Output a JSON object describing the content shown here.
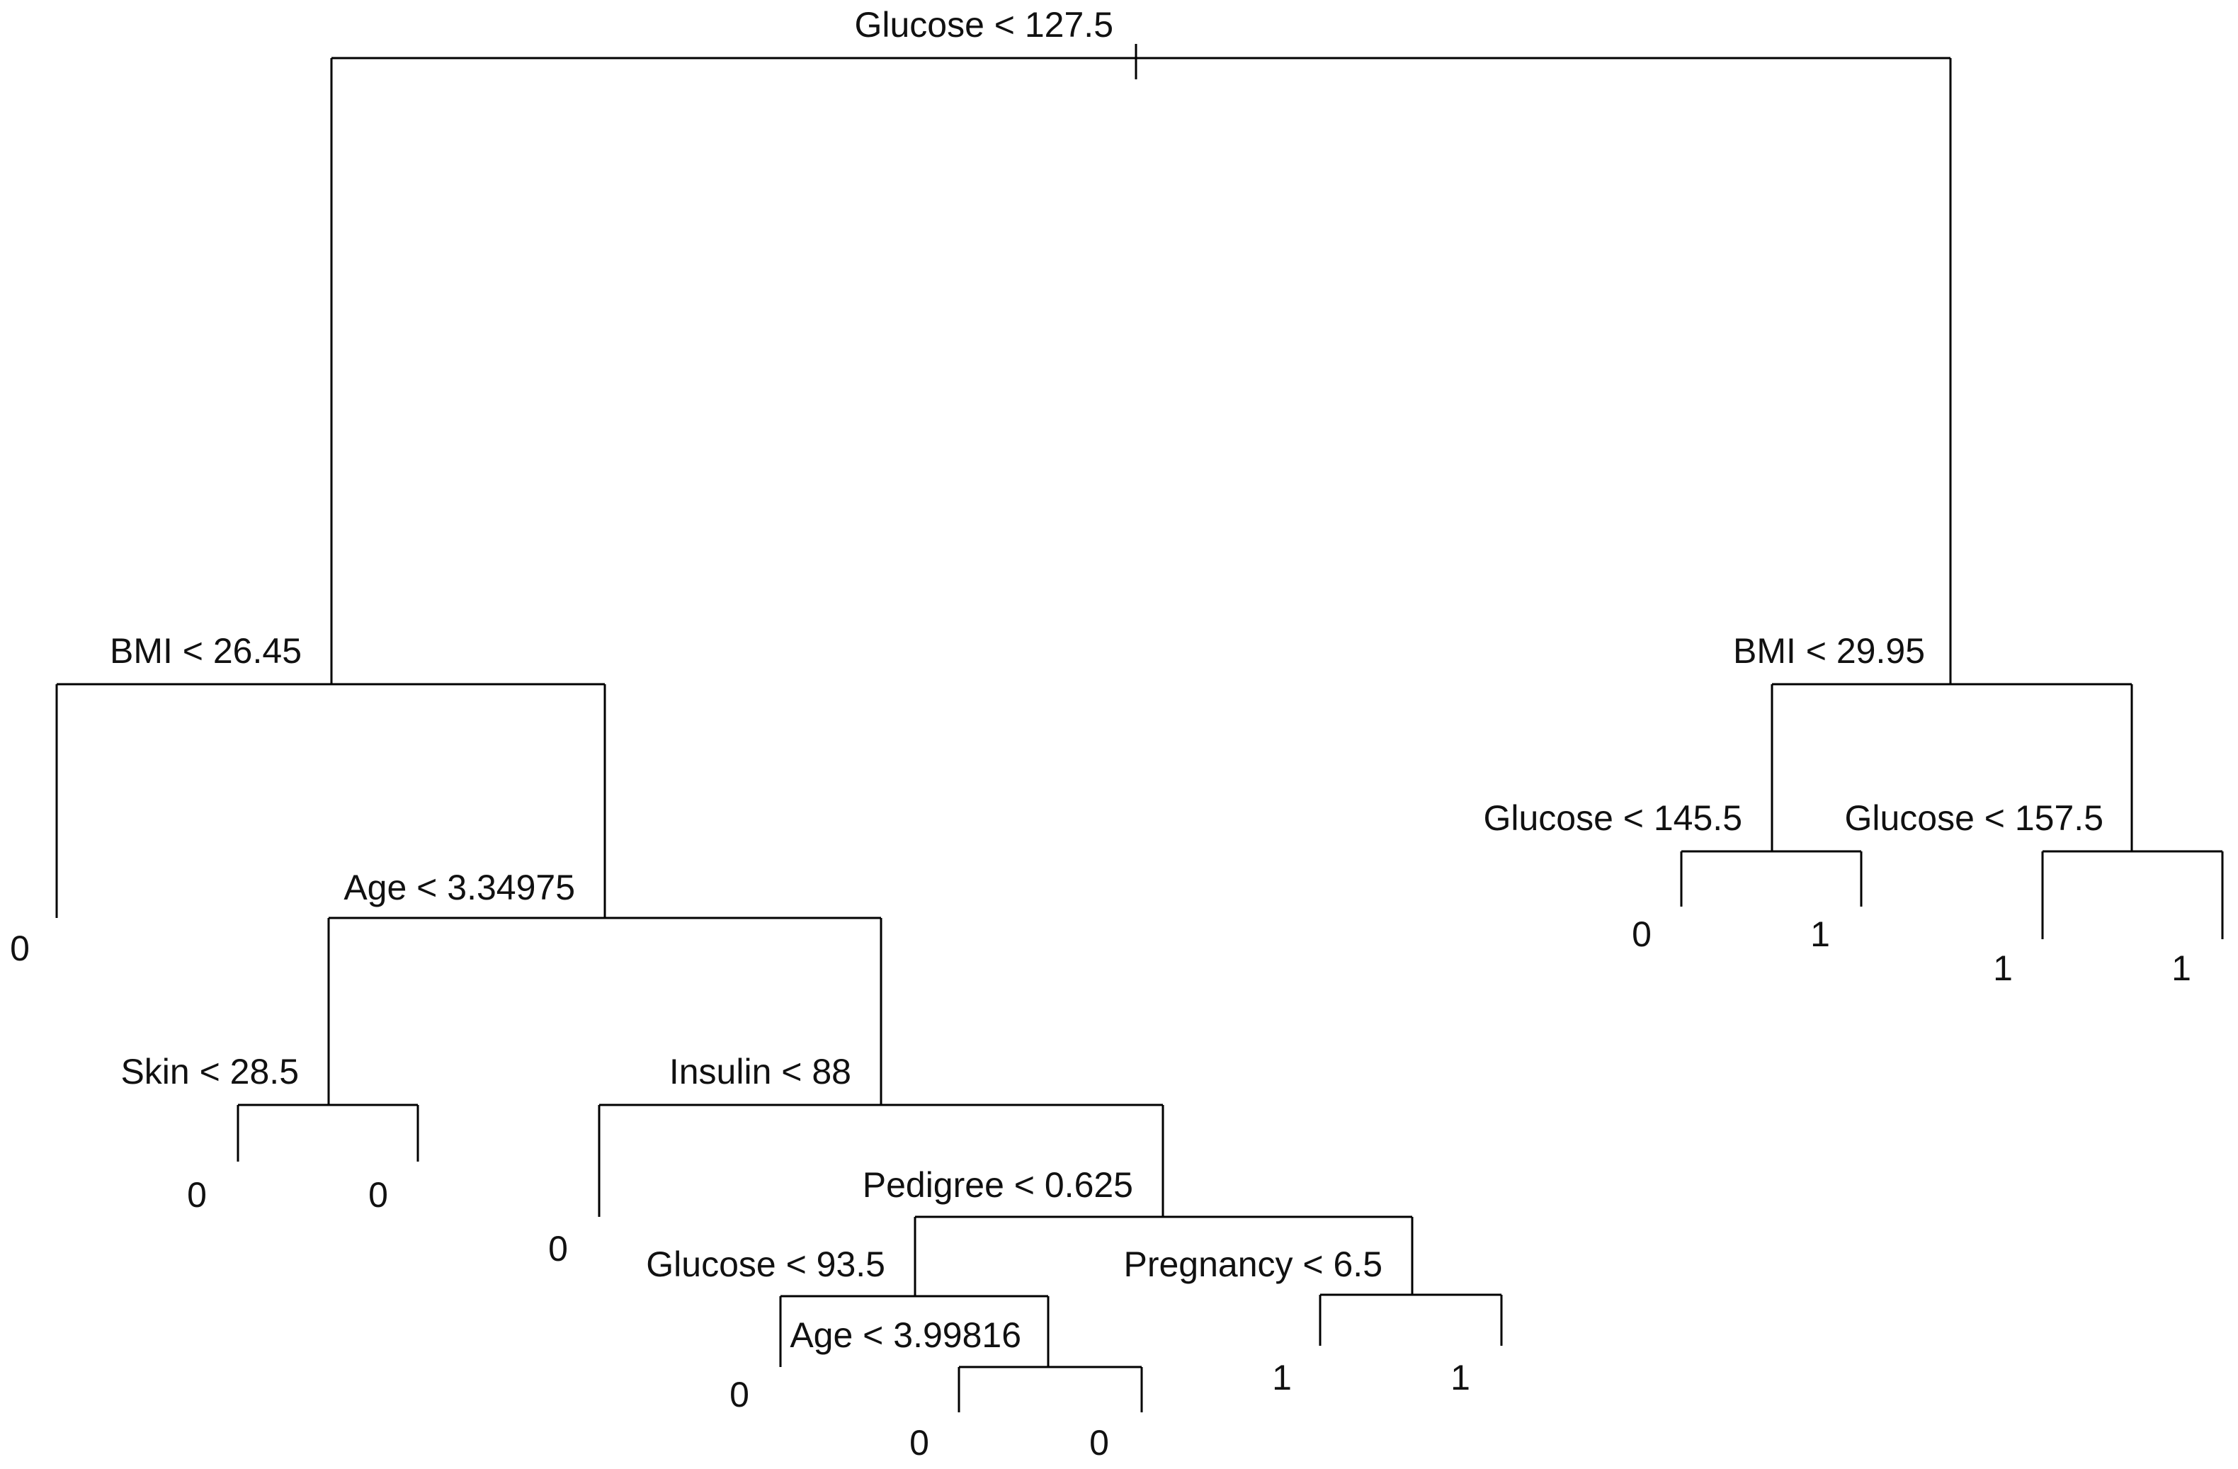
{
  "diagram": {
    "type": "decision-tree",
    "colors": {
      "line": "#000000",
      "text": "#111111",
      "background": "#ffffff"
    },
    "root": {
      "split": "Glucose < 127.5",
      "left": {
        "split": "BMI < 26.45",
        "left": {
          "leaf": "0"
        },
        "right": {
          "split": "Age < 3.34975",
          "left": {
            "split": "Skin < 28.5",
            "left": {
              "leaf": "0"
            },
            "right": {
              "leaf": "0"
            }
          },
          "right": {
            "split": "Insulin < 88",
            "left": {
              "leaf": "0"
            },
            "right": {
              "split": "Pedigree < 0.625",
              "left": {
                "split": "Glucose < 93.5",
                "left": {
                  "leaf": "0"
                },
                "right": {
                  "split": "Age < 3.99816",
                  "left": {
                    "leaf": "0"
                  },
                  "right": {
                    "leaf": "0"
                  }
                }
              },
              "right": {
                "split": "Pregnancy < 6.5",
                "left": {
                  "leaf": "1"
                },
                "right": {
                  "leaf": "1"
                }
              }
            }
          }
        }
      },
      "right": {
        "split": "BMI < 29.95",
        "left": {
          "split": "Glucose < 145.5",
          "left": {
            "leaf": "0"
          },
          "right": {
            "leaf": "1"
          }
        },
        "right": {
          "split": "Glucose < 157.5",
          "left": {
            "leaf": "1"
          },
          "right": {
            "leaf": "1"
          }
        }
      }
    }
  }
}
